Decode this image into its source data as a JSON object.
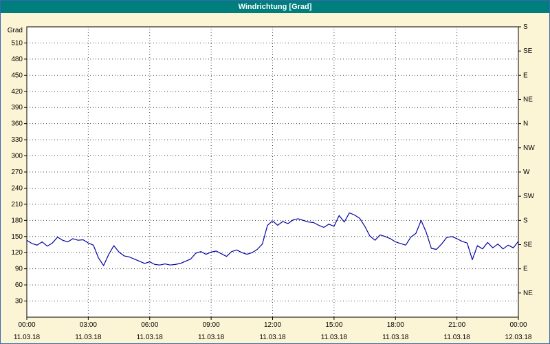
{
  "title": "Windrichtung [Grad]",
  "colors": {
    "title_bar": "#007d7d",
    "window_background": "#fcf5d5",
    "plot_background": "#ffffff",
    "grid": "#444444",
    "line": "#0000a0",
    "border": "#3a66b0"
  },
  "axes": {
    "y_left_unit": "Grad",
    "y_left_ticks": [
      510,
      480,
      450,
      420,
      390,
      360,
      330,
      300,
      270,
      240,
      210,
      180,
      150,
      120,
      90,
      60,
      30
    ],
    "y_right_labels": [
      {
        "value": 540,
        "label": "S"
      },
      {
        "value": 495,
        "label": "SE"
      },
      {
        "value": 450,
        "label": "E"
      },
      {
        "value": 405,
        "label": "NE"
      },
      {
        "value": 360,
        "label": "N"
      },
      {
        "value": 315,
        "label": "NW"
      },
      {
        "value": 270,
        "label": "W"
      },
      {
        "value": 225,
        "label": "SW"
      },
      {
        "value": 180,
        "label": "S"
      },
      {
        "value": 135,
        "label": "SE"
      },
      {
        "value": 90,
        "label": "E"
      },
      {
        "value": 45,
        "label": "NE"
      }
    ],
    "x_ticks": [
      {
        "hour": 0,
        "time": "00:00",
        "date": "11.03.18"
      },
      {
        "hour": 3,
        "time": "03:00",
        "date": "11.03.18"
      },
      {
        "hour": 6,
        "time": "06:00",
        "date": "11.03.18"
      },
      {
        "hour": 9,
        "time": "09:00",
        "date": "11.03.18"
      },
      {
        "hour": 12,
        "time": "12:00",
        "date": "11.03.18"
      },
      {
        "hour": 15,
        "time": "15:00",
        "date": "11.03.18"
      },
      {
        "hour": 18,
        "time": "18:00",
        "date": "11.03.18"
      },
      {
        "hour": 21,
        "time": "21:00",
        "date": "11.03.18"
      },
      {
        "hour": 24,
        "time": "00:00",
        "date": "12.03.18"
      }
    ]
  },
  "chart_data": {
    "type": "line",
    "title": "Windrichtung [Grad]",
    "series_name": "Windrichtung",
    "xlabel": "",
    "ylabel": "Grad",
    "xlim": [
      0,
      24
    ],
    "ylim": [
      0,
      540
    ],
    "grid": true,
    "legend": "none",
    "color": "#0000a0",
    "x_unit": "hours",
    "x": [
      0,
      0.25,
      0.5,
      0.75,
      1,
      1.25,
      1.5,
      1.75,
      2,
      2.25,
      2.5,
      2.75,
      3,
      3.25,
      3.5,
      3.75,
      4,
      4.25,
      4.5,
      4.75,
      5,
      5.25,
      5.5,
      5.75,
      6,
      6.25,
      6.5,
      6.75,
      7,
      7.25,
      7.5,
      7.75,
      8,
      8.25,
      8.5,
      8.75,
      9,
      9.25,
      9.5,
      9.75,
      10,
      10.25,
      10.5,
      10.75,
      11,
      11.25,
      11.5,
      11.75,
      12,
      12.25,
      12.5,
      12.75,
      13,
      13.25,
      13.5,
      13.75,
      14,
      14.25,
      14.5,
      14.75,
      15,
      15.25,
      15.5,
      15.75,
      16,
      16.25,
      16.5,
      16.75,
      17,
      17.25,
      17.5,
      17.75,
      18,
      18.25,
      18.5,
      18.75,
      19,
      19.25,
      19.5,
      19.75,
      20,
      20.25,
      20.5,
      20.75,
      21,
      21.25,
      21.5,
      21.75,
      22,
      22.25,
      22.5,
      22.75,
      23,
      23.25,
      23.5,
      23.75,
      24
    ],
    "values": [
      143,
      137,
      134,
      140,
      132,
      138,
      149,
      143,
      140,
      146,
      143,
      144,
      138,
      134,
      110,
      96,
      117,
      133,
      121,
      114,
      112,
      108,
      104,
      100,
      103,
      98,
      97,
      99,
      97,
      98,
      100,
      104,
      108,
      119,
      122,
      117,
      121,
      123,
      118,
      113,
      122,
      125,
      120,
      117,
      120,
      126,
      136,
      171,
      179,
      171,
      178,
      174,
      181,
      183,
      180,
      177,
      176,
      171,
      167,
      173,
      169,
      189,
      177,
      194,
      190,
      184,
      169,
      151,
      143,
      153,
      150,
      146,
      140,
      137,
      134,
      149,
      156,
      180,
      158,
      128,
      126,
      136,
      148,
      150,
      146,
      141,
      138,
      107,
      133,
      127,
      139,
      129,
      136,
      127,
      134,
      129,
      141
    ]
  }
}
